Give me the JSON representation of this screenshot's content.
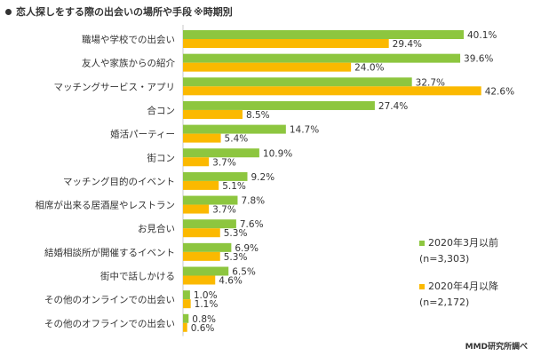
{
  "chart_data": {
    "type": "bar",
    "orientation": "horizontal",
    "title": "恋人探しをする際の出会いの場所や手段",
    "subtitle": "※時期別",
    "categories": [
      "職場や学校での出会い",
      "友人や家族からの紹介",
      "マッチングサービス・アプリ",
      "合コン",
      "婚活パーティー",
      "街コン",
      "マッチング目的のイベント",
      "相席が出来る居酒屋やレストラン",
      "お見合い",
      "結婚相談所が開催するイベント",
      "街中で話しかける",
      "その他のオンラインでの出会い",
      "その他のオフラインでの出会い"
    ],
    "series": [
      {
        "name": "2020年3月以前",
        "sample": "(n=3,303)",
        "color": "#8dc63f",
        "values": [
          40.1,
          39.6,
          32.7,
          27.4,
          14.7,
          10.9,
          9.2,
          7.8,
          7.6,
          6.9,
          6.5,
          1.0,
          0.8
        ],
        "labels": [
          "40.1%",
          "39.6%",
          "32.7%",
          "27.4%",
          "14.7%",
          "10.9%",
          "9.2%",
          "7.8%",
          "7.6%",
          "6.9%",
          "6.5%",
          "1.0%",
          "0.8%"
        ]
      },
      {
        "name": "2020年4月以降",
        "sample": "(n=2,172)",
        "color": "#fbb900",
        "values": [
          29.4,
          24.0,
          42.6,
          8.5,
          5.4,
          3.7,
          5.1,
          3.7,
          5.3,
          5.3,
          4.6,
          1.1,
          0.6
        ],
        "labels": [
          "29.4%",
          "24.0%",
          "42.6%",
          "8.5%",
          "5.4%",
          "3.7%",
          "5.1%",
          "3.7%",
          "5.3%",
          "5.3%",
          "4.6%",
          "1.1%",
          "0.6%"
        ]
      }
    ],
    "xlim": [
      0,
      45
    ],
    "grid": false,
    "legend_position": "right"
  },
  "source": "MMD研究所調べ"
}
